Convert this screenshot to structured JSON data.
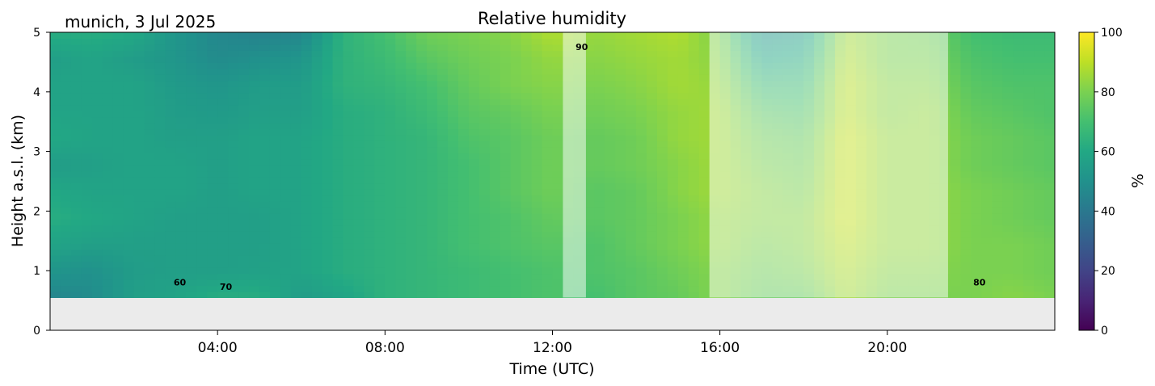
{
  "chart_data": {
    "type": "heatmap",
    "title": "Relative humidity",
    "location_date": "munich, 3 Jul 2025",
    "xlabel": "Time (UTC)",
    "ylabel": "Height a.s.l. (km)",
    "xlim_hours": [
      0,
      24
    ],
    "ylim_km": [
      0,
      5
    ],
    "x_ticks": [
      {
        "hour": 4,
        "label": "04:00"
      },
      {
        "hour": 8,
        "label": "08:00"
      },
      {
        "hour": 12,
        "label": "12:00"
      },
      {
        "hour": 16,
        "label": "16:00"
      },
      {
        "hour": 20,
        "label": "20:00"
      }
    ],
    "y_ticks": [
      {
        "value": 0,
        "label": "0"
      },
      {
        "value": 1,
        "label": "1"
      },
      {
        "value": 2,
        "label": "2"
      },
      {
        "value": 3,
        "label": "3"
      },
      {
        "value": 4,
        "label": "4"
      },
      {
        "value": 5,
        "label": "5"
      }
    ],
    "colorbar": {
      "label": "%",
      "range": [
        0,
        100
      ],
      "colormap": "viridis",
      "ticks": [
        {
          "value": 0,
          "label": "0"
        },
        {
          "value": 20,
          "label": "20"
        },
        {
          "value": 40,
          "label": "40"
        },
        {
          "value": 60,
          "label": "60"
        },
        {
          "value": 80,
          "label": "80"
        },
        {
          "value": 100,
          "label": "100"
        }
      ]
    },
    "data_bottom_km": 0.55,
    "no_data_color": "#ebebeb",
    "masked_periods_hours": [
      [
        12.25,
        12.8
      ],
      [
        15.75,
        21.45
      ]
    ],
    "contour_labels": [
      {
        "hour": 3.1,
        "km": 0.75,
        "label": "60"
      },
      {
        "hour": 4.2,
        "km": 0.68,
        "label": "70"
      },
      {
        "hour": 12.7,
        "km": 4.7,
        "label": "90"
      },
      {
        "hour": 22.2,
        "km": 0.75,
        "label": "80"
      }
    ],
    "rh_columns": [
      {
        "hour": 0.0,
        "rh": [
          45,
          52,
          58,
          62,
          60,
          55,
          60,
          58,
          58,
          56,
          62
        ]
      },
      {
        "hour": 1.0,
        "rh": [
          48,
          50,
          56,
          60,
          58,
          56,
          58,
          58,
          58,
          58,
          62
        ]
      },
      {
        "hour": 2.0,
        "rh": [
          56,
          55,
          56,
          58,
          58,
          58,
          58,
          58,
          58,
          55,
          60
        ]
      },
      {
        "hour": 3.0,
        "rh": [
          58,
          56,
          56,
          56,
          58,
          58,
          56,
          55,
          54,
          52,
          52
        ]
      },
      {
        "hour": 4.0,
        "rh": [
          62,
          56,
          56,
          56,
          56,
          56,
          56,
          54,
          52,
          48,
          46
        ]
      },
      {
        "hour": 5.0,
        "rh": [
          62,
          57,
          56,
          56,
          58,
          58,
          58,
          56,
          55,
          50,
          44
        ]
      },
      {
        "hour": 6.0,
        "rh": [
          55,
          58,
          58,
          58,
          58,
          58,
          58,
          56,
          55,
          52,
          46
        ]
      },
      {
        "hour": 7.0,
        "rh": [
          58,
          62,
          62,
          62,
          62,
          62,
          62,
          62,
          64,
          64,
          64
        ]
      },
      {
        "hour": 8.0,
        "rh": [
          64,
          64,
          64,
          64,
          64,
          64,
          64,
          64,
          66,
          68,
          70
        ]
      },
      {
        "hour": 9.0,
        "rh": [
          66,
          66,
          66,
          66,
          66,
          66,
          66,
          68,
          70,
          74,
          78
        ]
      },
      {
        "hour": 10.0,
        "rh": [
          68,
          68,
          70,
          70,
          70,
          70,
          72,
          74,
          76,
          78,
          80
        ]
      },
      {
        "hour": 11.0,
        "rh": [
          70,
          70,
          72,
          72,
          74,
          74,
          74,
          76,
          80,
          80,
          82
        ]
      },
      {
        "hour": 12.0,
        "rh": [
          72,
          72,
          74,
          76,
          78,
          78,
          78,
          80,
          82,
          84,
          88
        ]
      },
      {
        "hour": 13.0,
        "rh": [
          70,
          72,
          72,
          74,
          74,
          76,
          76,
          78,
          80,
          82,
          84
        ]
      },
      {
        "hour": 14.0,
        "rh": [
          74,
          74,
          76,
          76,
          76,
          78,
          78,
          80,
          82,
          84,
          86
        ]
      },
      {
        "hour": 15.0,
        "rh": [
          76,
          78,
          80,
          80,
          82,
          82,
          84,
          84,
          86,
          86,
          88
        ]
      },
      {
        "hour": 16.0,
        "rh": [
          82,
          82,
          84,
          84,
          86,
          86,
          86,
          86,
          84,
          82,
          80
        ]
      },
      {
        "hour": 17.0,
        "rh": [
          76,
          78,
          80,
          82,
          82,
          80,
          78,
          74,
          68,
          60,
          52
        ]
      },
      {
        "hour": 18.0,
        "rh": [
          76,
          80,
          82,
          82,
          80,
          78,
          76,
          72,
          68,
          62,
          56
        ]
      },
      {
        "hour": 19.0,
        "rh": [
          86,
          88,
          90,
          92,
          92,
          92,
          92,
          90,
          90,
          88,
          86
        ]
      },
      {
        "hour": 20.0,
        "rh": [
          80,
          82,
          84,
          84,
          84,
          84,
          84,
          82,
          82,
          80,
          80
        ]
      },
      {
        "hour": 21.0,
        "rh": [
          80,
          82,
          84,
          84,
          84,
          84,
          84,
          84,
          82,
          80,
          78
        ]
      },
      {
        "hour": 22.0,
        "rh": [
          80,
          80,
          80,
          80,
          80,
          78,
          78,
          76,
          74,
          72,
          70
        ]
      },
      {
        "hour": 23.0,
        "rh": [
          82,
          80,
          80,
          78,
          78,
          76,
          76,
          74,
          72,
          70,
          68
        ]
      },
      {
        "hour": 24.0,
        "rh": [
          80,
          78,
          78,
          76,
          76,
          74,
          74,
          72,
          72,
          70,
          68
        ]
      }
    ]
  }
}
